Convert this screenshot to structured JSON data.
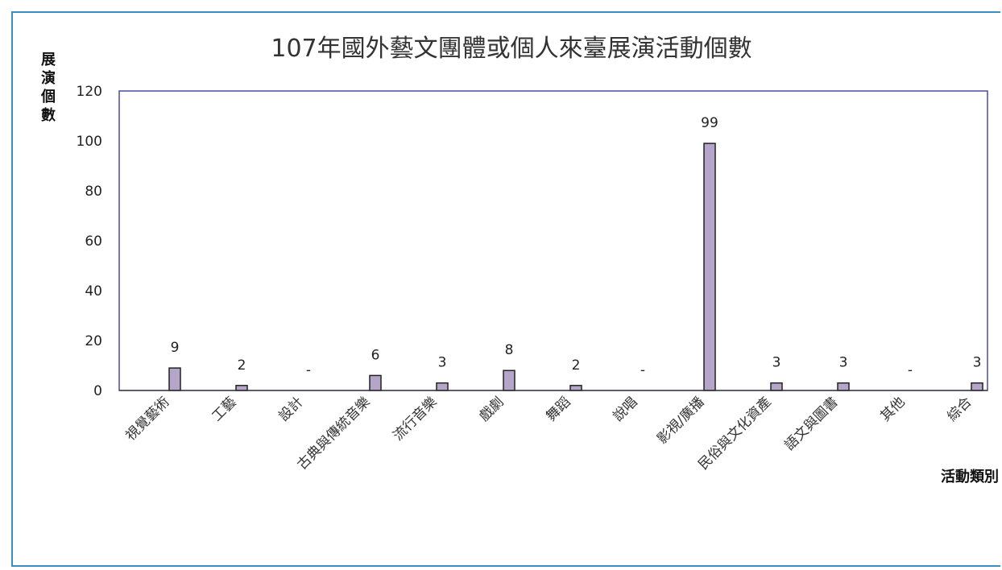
{
  "chart_data": {
    "type": "bar",
    "title": "107年國外藝文團體或個人來臺展演活動個數",
    "ylabel": "展演個數",
    "xlabel": "活動類別",
    "ylim": [
      0,
      120
    ],
    "yticks": [
      0,
      20,
      40,
      60,
      80,
      100,
      120
    ],
    "categories": [
      "視覺藝術",
      "工藝",
      "設計",
      "古典與傳統音樂",
      "流行音樂",
      "戲劇",
      "舞蹈",
      "說唱",
      "影視/廣播",
      "民俗與文化資產",
      "語文與圖書",
      "其他",
      "綜合"
    ],
    "values": [
      9,
      2,
      null,
      6,
      3,
      8,
      2,
      null,
      99,
      3,
      3,
      null,
      3
    ],
    "data_labels": [
      "9",
      "2",
      "-",
      "6",
      "3",
      "8",
      "2",
      "-",
      "99",
      "3",
      "3",
      "-",
      "3"
    ],
    "grid": false,
    "colors": {
      "bar_fill": "#b5a6c9",
      "bar_stroke": "#222222",
      "plot_border": "#4b4ba8",
      "frame": "#3a8fc0"
    }
  }
}
